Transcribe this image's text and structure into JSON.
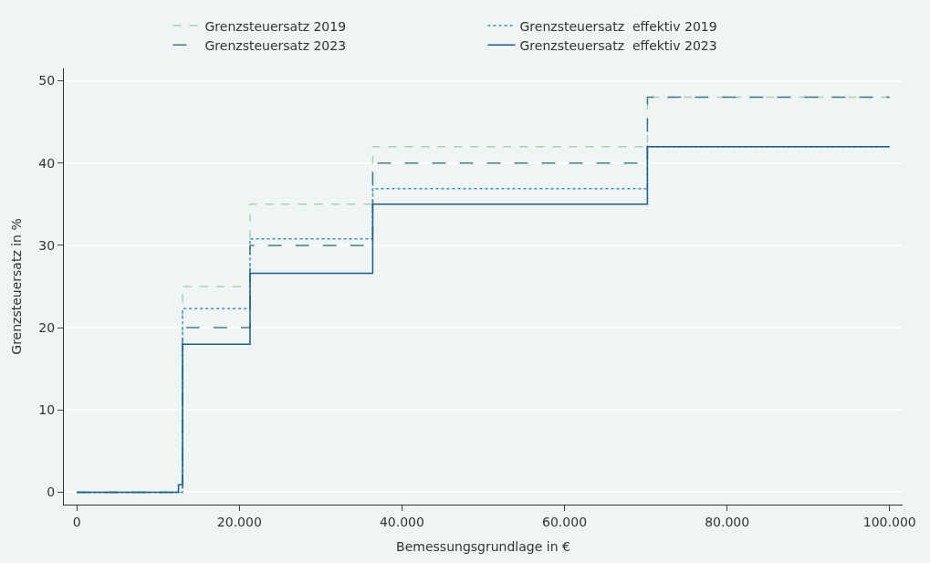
{
  "chart_data": {
    "type": "step",
    "xlabel": "Bemessungsgrundlage in €",
    "ylabel": "Grenzsteuersatz in %",
    "xlim": [
      -1600,
      101600
    ],
    "ylim": [
      -1.5,
      51.5
    ],
    "xticks": [
      {
        "value": 0,
        "label": "0"
      },
      {
        "value": 20000,
        "label": "20.000"
      },
      {
        "value": 40000,
        "label": "40.000"
      },
      {
        "value": 60000,
        "label": "60.000"
      },
      {
        "value": 80000,
        "label": "80.000"
      },
      {
        "value": 100000,
        "label": "100.000"
      }
    ],
    "yticks": [
      0,
      10,
      20,
      30,
      40,
      50
    ],
    "grid": "y",
    "legend": "top",
    "series": [
      {
        "name": "Grenzsteuersatz 2019",
        "color": "#a9d0b1",
        "line_style": "dashed",
        "x": [
          0,
          13000,
          21300,
          36400,
          70200,
          100000
        ],
        "values": [
          0,
          25,
          35,
          42,
          48,
          48
        ]
      },
      {
        "name": "Grenzsteuersatz  effektiv 2019",
        "color": "#3d8fcc",
        "line_style": "dotted",
        "x": [
          0,
          13000,
          21300,
          36400,
          70200,
          100000
        ],
        "values": [
          0,
          22.3,
          30.8,
          36.9,
          42,
          42
        ]
      },
      {
        "name": "Grenzsteuersatz 2023",
        "color": "#3f7c80",
        "line_style": "longdash",
        "x": [
          0,
          13000,
          21300,
          36400,
          70200,
          100000
        ],
        "values": [
          0,
          20,
          30,
          40,
          48,
          48
        ]
      },
      {
        "name": "Grenzsteuersatz  effektiv 2023",
        "color": "#1b5e8c",
        "line_style": "solid",
        "x": [
          0,
          12500,
          13000,
          21300,
          36400,
          70200,
          100000
        ],
        "values": [
          0,
          0.9,
          18,
          26.6,
          35,
          42,
          42
        ]
      }
    ]
  }
}
